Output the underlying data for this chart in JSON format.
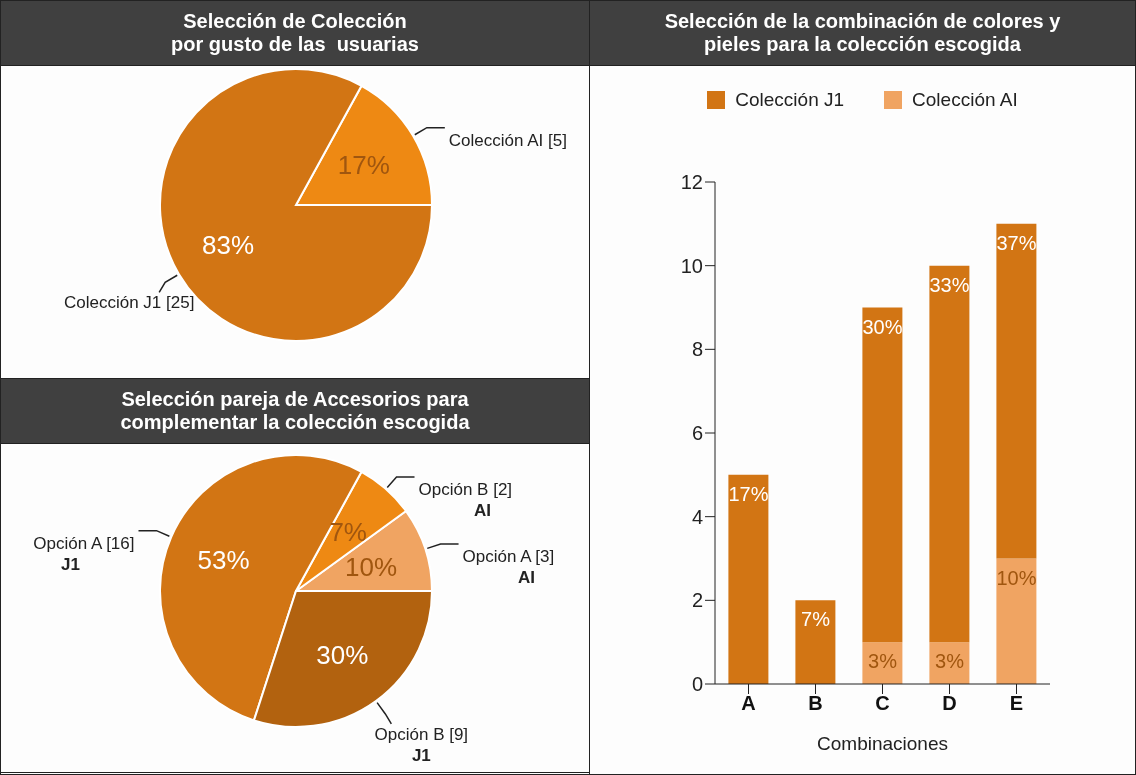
{
  "chart_data": [
    {
      "type": "pie",
      "title": "Selección de Colección\npor gusto de las  usuarias",
      "categories": [
        "Colección AI [5]",
        "Colección J1 [25]"
      ],
      "values": [
        17,
        83
      ],
      "colors": [
        "#ee8913",
        "#d27514"
      ],
      "value_labels": [
        "17%",
        "83%"
      ]
    },
    {
      "type": "pie",
      "title": "Selección pareja de Accesorios para\ncomplementar la colección escogida",
      "categories": [
        "Opción A [3]\nAI",
        "Opción B [2]\nAI",
        "Opción A [16]\nJ1",
        "Opción B [9]\nJ1"
      ],
      "values": [
        10,
        7,
        53,
        30
      ],
      "colors": [
        "#f0a462",
        "#ee8913",
        "#d27514",
        "#b2620f"
      ],
      "value_labels": [
        "10%",
        "7%",
        "53%",
        "30%"
      ]
    },
    {
      "type": "bar",
      "title": "Selección de la combinación de colores y\npieles para la colección escogida",
      "xlabel": "Combinaciones",
      "categories": [
        "A",
        "B",
        "C",
        "D",
        "E"
      ],
      "stacked": true,
      "legend": "top",
      "grid": false,
      "ylim": [
        0,
        12
      ],
      "yticks": [
        0,
        2,
        4,
        6,
        8,
        10,
        12
      ],
      "series": [
        {
          "name": "Colección AI",
          "color": "#f0a462",
          "values": [
            null,
            null,
            1,
            1,
            3
          ]
        },
        {
          "name": "Colección J1",
          "color": "#d27514",
          "values": [
            5,
            2,
            8,
            9,
            8
          ]
        }
      ],
      "annotations": [
        {
          "text": "17%",
          "x": "A",
          "y": 5
        },
        {
          "text": "7%",
          "x": "B",
          "y": 2
        },
        {
          "text": "30%",
          "x": "C",
          "y": 9
        },
        {
          "text": "33%",
          "x": "D",
          "y": 10
        },
        {
          "text": "37%",
          "x": "E",
          "y": 11
        },
        {
          "text": "3%",
          "x": "C",
          "y": 1
        },
        {
          "text": "3%",
          "x": "D",
          "y": 1
        },
        {
          "text": "10%",
          "x": "E",
          "y": 3
        }
      ]
    }
  ]
}
